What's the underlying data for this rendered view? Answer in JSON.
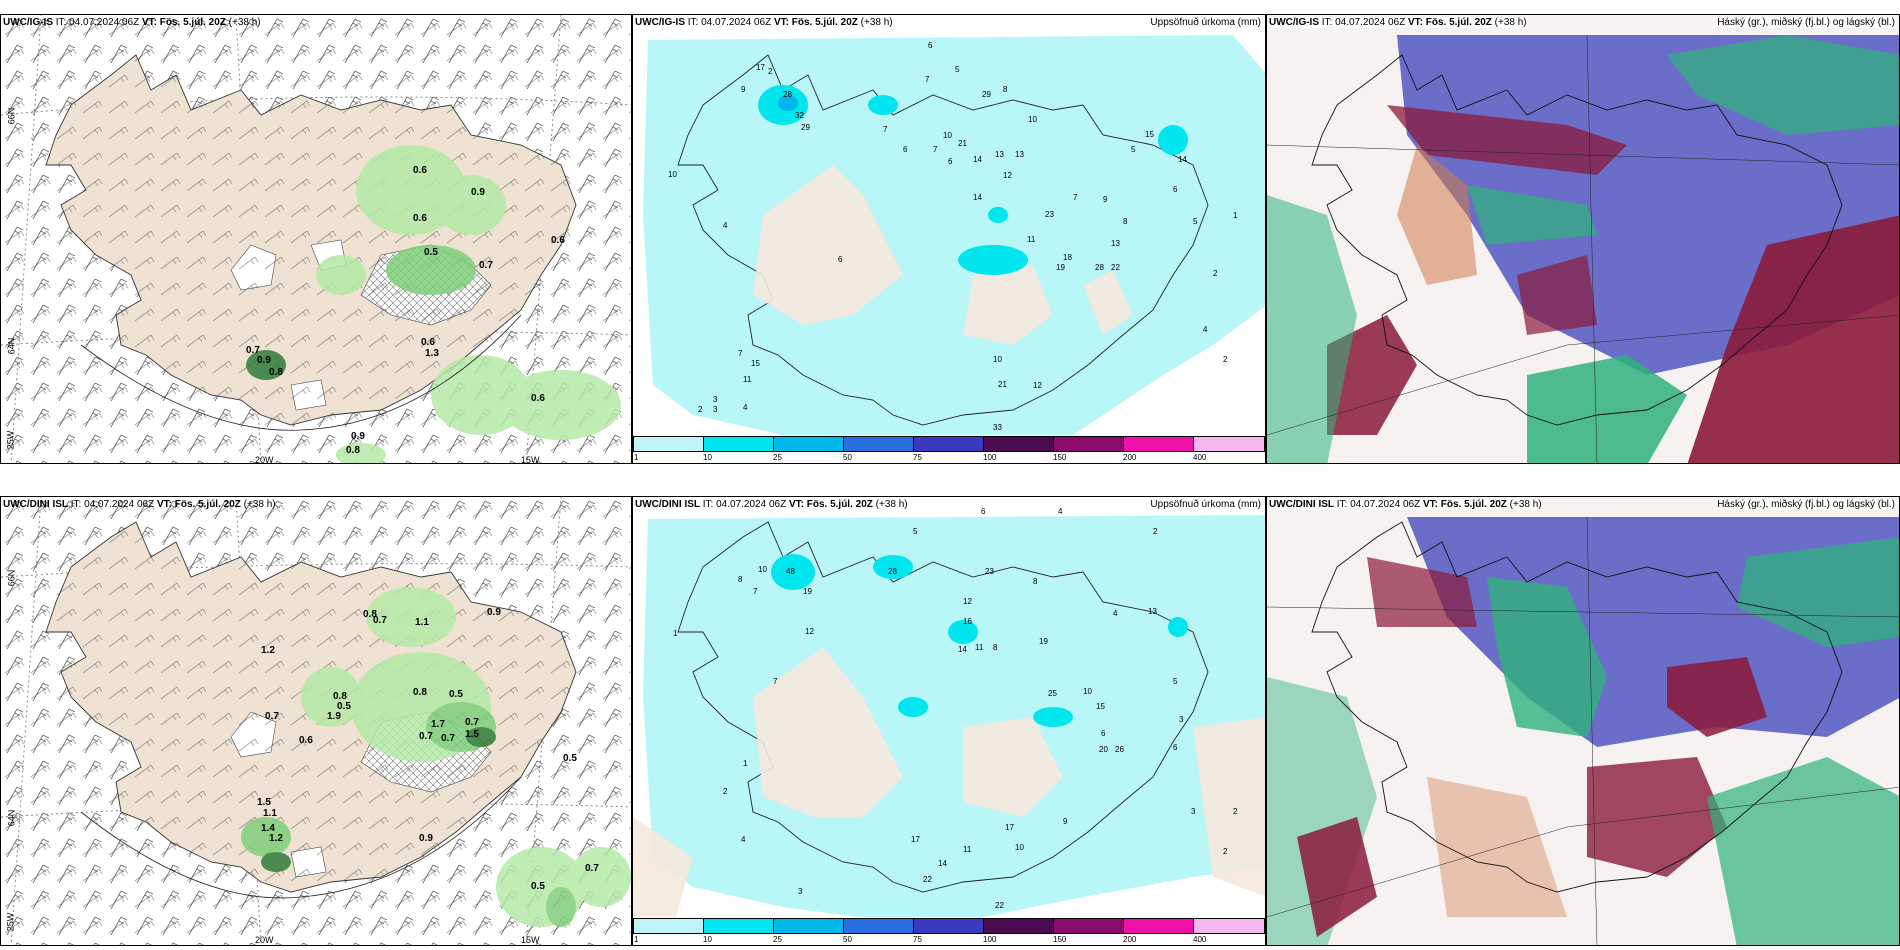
{
  "panels": {
    "ig_wind": {
      "model": "UWC/IG-IS",
      "it": "IT: 04.07.2024 06Z",
      "vt": "VT: Fös. 5.júl. 20Z",
      "lead": "(+38 h)"
    },
    "ig_precip": {
      "model": "UWC/IG-IS",
      "it": "IT: 04.07.2024 06Z",
      "vt": "VT: Fös. 5.júl. 20Z",
      "lead": "(+38 h)",
      "title": "Uppsöfnuð úrkoma (mm)"
    },
    "ig_cloud": {
      "model": "UWC/IG-IS",
      "it": "IT: 04.07.2024 06Z",
      "vt": "VT: Fös. 5.júl. 20Z",
      "lead": "(+38 h)",
      "title": "Háský (gr.), miðský (fj.bl.) og lágský (bl.)"
    },
    "dini_wind": {
      "model": "UWC/DINI ISL",
      "it": "IT: 04.07.2024 06Z",
      "vt": "VT: Fös. 5.júl. 20Z",
      "lead": "(+38 h)"
    },
    "dini_precip": {
      "model": "UWC/DINI ISL",
      "it": "IT: 04.07.2024 06Z",
      "vt": "VT: Fös. 5.júl. 20Z",
      "lead": "(+38 h)",
      "title": "Uppsöfnuð úrkoma (mm)"
    },
    "dini_cloud": {
      "model": "UWC/DINI ISL",
      "it": "IT: 04.07.2024 06Z",
      "vt": "VT: Fös. 5.júl. 20Z",
      "lead": "(+38 h)",
      "title": "Háský (gr.), miðský (fj.bl.) og lágský (bl.)"
    }
  },
  "axis_labels": {
    "lat66": "66N",
    "lat64": "64N",
    "lon25": "25W",
    "lon20": "20W",
    "lon15": "15W",
    "lat65": "65N",
    "lat64b": "64N"
  },
  "colorbar": {
    "ticks": [
      "1",
      "10",
      "25",
      "50",
      "75",
      "100",
      "150",
      "200",
      "400"
    ],
    "colors": [
      "#bff5f8",
      "#00e5ee",
      "#00b7ea",
      "#2a6fe0",
      "#3a3ac0",
      "#4b0b50",
      "#8a0b6a",
      "#ee10a8",
      "#f6b6f0"
    ]
  },
  "ig_wind_values": [
    "0.6",
    "0.9",
    "0.6",
    "0.5",
    "0.7",
    "0.6",
    "0.7",
    "0.9",
    "0.8",
    "0.6",
    "1.3",
    "0.6",
    "0.9",
    "0.8"
  ],
  "dini_wind_values": [
    "0.8",
    "0.7",
    "1.1",
    "0.9",
    "1.2",
    "0.7",
    "0.8",
    "0.5",
    "1.9",
    "0.6",
    "0.8",
    "0.5",
    "1.7",
    "0.7",
    "0.7",
    "0.7",
    "1.5",
    "0.5",
    "1.5",
    "1.1",
    "1.4",
    "1.2",
    "0.9",
    "0.5",
    "0.7"
  ],
  "ig_precip_values": [
    "6",
    "5",
    "7",
    "17",
    "2",
    "28",
    "32",
    "29",
    "9",
    "7",
    "6",
    "8",
    "10",
    "7",
    "6",
    "13",
    "29",
    "21",
    "14",
    "13",
    "12",
    "10",
    "15",
    "5",
    "14",
    "23",
    "18",
    "19",
    "28",
    "22",
    "13",
    "11",
    "14",
    "10",
    "21",
    "12",
    "33",
    "6",
    "10",
    "15",
    "7",
    "11",
    "4",
    "3",
    "2",
    "4",
    "9",
    "8",
    "7",
    "6",
    "5",
    "4",
    "2",
    "2",
    "1",
    "3"
  ],
  "dini_precip_values": [
    "6",
    "4",
    "5",
    "2",
    "48",
    "19",
    "10",
    "8",
    "7",
    "12",
    "16",
    "28",
    "23",
    "12",
    "8",
    "14",
    "11",
    "19",
    "25",
    "20",
    "26",
    "10",
    "8",
    "13",
    "15",
    "17",
    "22",
    "11",
    "6",
    "7",
    "4",
    "3",
    "9",
    "10",
    "5",
    "6",
    "3",
    "2",
    "1",
    "4",
    "2",
    "3",
    "1",
    "2",
    "22",
    "17",
    "14"
  ],
  "colors": {
    "land": "#efe2d2",
    "green_light": "#b5eaa6",
    "green": "#7fd07a",
    "green_dark": "#2f7d3a",
    "cyan": "#b8f6f7",
    "cloud_blue": "#5b5fc4",
    "cloud_red": "#8b1a3a",
    "cloud_green": "#2fb27c"
  }
}
